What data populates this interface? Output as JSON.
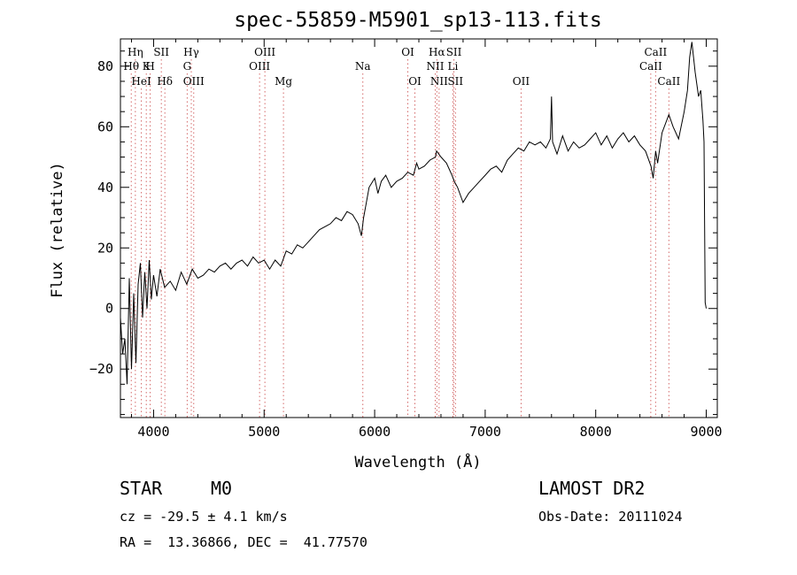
{
  "chart_data": {
    "type": "line",
    "title": "spec-55859-M5901_sp13-113.fits",
    "xlabel": "Wavelength (Å)",
    "ylabel": "Flux (relative)",
    "xlim": [
      3700,
      9100
    ],
    "ylim": [
      -36,
      89
    ],
    "x_ticks": [
      4000,
      5000,
      6000,
      7000,
      8000,
      9000
    ],
    "y_ticks": [
      -20,
      0,
      20,
      40,
      60,
      80
    ],
    "grid": false,
    "series": [
      {
        "name": "flux",
        "color": "#000000",
        "x": [
          3700,
          3720,
          3740,
          3760,
          3780,
          3800,
          3820,
          3840,
          3860,
          3880,
          3900,
          3920,
          3940,
          3960,
          3980,
          4000,
          4030,
          4060,
          4100,
          4150,
          4200,
          4250,
          4300,
          4350,
          4400,
          4450,
          4500,
          4550,
          4600,
          4650,
          4700,
          4750,
          4800,
          4850,
          4900,
          4950,
          5000,
          5050,
          5100,
          5150,
          5200,
          5250,
          5300,
          5350,
          5400,
          5450,
          5500,
          5550,
          5600,
          5650,
          5700,
          5750,
          5800,
          5850,
          5880,
          5900,
          5920,
          5950,
          6000,
          6030,
          6060,
          6100,
          6150,
          6200,
          6250,
          6300,
          6350,
          6380,
          6400,
          6450,
          6500,
          6550,
          6560,
          6600,
          6650,
          6700,
          6720,
          6750,
          6780,
          6800,
          6850,
          6900,
          6950,
          7000,
          7050,
          7100,
          7150,
          7200,
          7250,
          7300,
          7350,
          7400,
          7450,
          7500,
          7550,
          7590,
          7600,
          7610,
          7650,
          7700,
          7750,
          7800,
          7850,
          7900,
          7950,
          8000,
          8050,
          8100,
          8150,
          8200,
          8250,
          8300,
          8350,
          8400,
          8450,
          8500,
          8520,
          8542,
          8560,
          8600,
          8662,
          8700,
          8750,
          8800,
          8830,
          8850,
          8870,
          8900,
          8930,
          8950,
          8970,
          8980,
          8990,
          9000
        ],
        "y": [
          -3,
          -15,
          -10,
          -25,
          10,
          -20,
          5,
          -18,
          8,
          15,
          -3,
          12,
          0,
          16,
          3,
          11,
          4,
          13,
          7,
          9,
          6,
          12,
          8,
          13,
          10,
          11,
          13,
          12,
          14,
          15,
          13,
          15,
          16,
          14,
          17,
          15,
          16,
          13,
          16,
          14,
          19,
          18,
          21,
          20,
          22,
          24,
          26,
          27,
          28,
          30,
          29,
          32,
          31,
          28,
          24,
          30,
          34,
          40,
          43,
          38,
          42,
          44,
          40,
          42,
          43,
          45,
          44,
          48,
          46,
          47,
          49,
          50,
          52,
          50,
          48,
          44,
          42,
          40,
          37,
          35,
          38,
          40,
          42,
          44,
          46,
          47,
          45,
          49,
          51,
          53,
          52,
          55,
          54,
          55,
          53,
          56,
          70,
          55,
          51,
          57,
          52,
          55,
          53,
          54,
          56,
          58,
          54,
          57,
          53,
          56,
          58,
          55,
          57,
          54,
          52,
          47,
          43,
          52,
          48,
          58,
          64,
          60,
          56,
          65,
          72,
          83,
          88,
          78,
          70,
          72,
          62,
          55,
          2,
          0
        ]
      }
    ],
    "line_markers": [
      {
        "label": "Hη",
        "wavelength": 3835,
        "row": 0
      },
      {
        "label": "Hθ",
        "wavelength": 3798,
        "row": 1
      },
      {
        "label": "HeI",
        "wavelength": 3889,
        "row": 2
      },
      {
        "label": "K",
        "wavelength": 3934,
        "row": 1
      },
      {
        "label": "H",
        "wavelength": 3969,
        "row": 1
      },
      {
        "label": "SII",
        "wavelength": 4070,
        "row": 0
      },
      {
        "label": "Hδ",
        "wavelength": 4102,
        "row": 2
      },
      {
        "label": "Hγ",
        "wavelength": 4341,
        "row": 0
      },
      {
        "label": "G",
        "wavelength": 4304,
        "row": 1
      },
      {
        "label": "OIII",
        "wavelength": 4363,
        "row": 2
      },
      {
        "label": "OIII",
        "wavelength": 5007,
        "row": 0
      },
      {
        "label": "OIII",
        "wavelength": 4959,
        "row": 1
      },
      {
        "label": "Mg",
        "wavelength": 5175,
        "row": 2
      },
      {
        "label": "Na",
        "wavelength": 5893,
        "row": 1
      },
      {
        "label": "OI",
        "wavelength": 6300,
        "row": 0
      },
      {
        "label": "OI",
        "wavelength": 6364,
        "row": 2
      },
      {
        "label": "Hα",
        "wavelength": 6563,
        "row": 0
      },
      {
        "label": "SII",
        "wavelength": 6717,
        "row": 0
      },
      {
        "label": "NII",
        "wavelength": 6548,
        "row": 1
      },
      {
        "label": "Li",
        "wavelength": 6708,
        "row": 1
      },
      {
        "label": "NII",
        "wavelength": 6583,
        "row": 2
      },
      {
        "label": "SII",
        "wavelength": 6731,
        "row": 2
      },
      {
        "label": "OII",
        "wavelength": 7325,
        "row": 2
      },
      {
        "label": "CaII",
        "wavelength": 8542,
        "row": 0
      },
      {
        "label": "CaII",
        "wavelength": 8498,
        "row": 1
      },
      {
        "label": "CaII",
        "wavelength": 8662,
        "row": 2
      }
    ],
    "marker_color": "#d46a6a"
  },
  "info": {
    "object_type": "STAR",
    "subclass": "M0",
    "survey": "LAMOST DR2",
    "redshift_text": "cz = -29.5 ± 4.1 km/s",
    "obs_date_text": "Obs-Date: 20111024",
    "coords_text": "RA =  13.36866, DEC =  41.77570"
  }
}
